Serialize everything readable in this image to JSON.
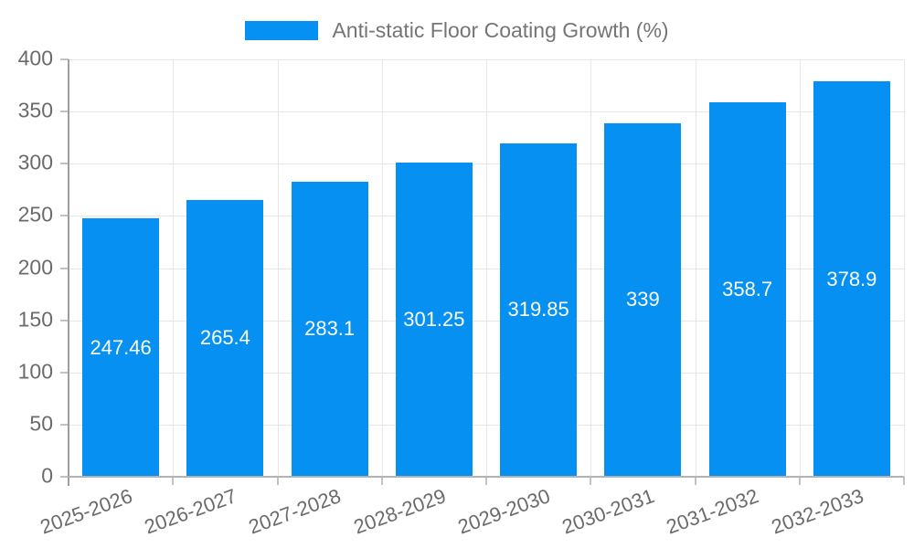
{
  "legend": {
    "label": "Anti-static Floor Coating Growth (%)"
  },
  "colors": {
    "bar": "#0590f2",
    "grid": "#e6e6e6",
    "axis": "#9e9e9e",
    "baseline": "#b3b3b3",
    "tick": "#c2c2c2",
    "axis_text": "#6b6b6b",
    "legend_text": "#757575",
    "value_text": "#ffffff"
  },
  "chart_data": {
    "type": "bar",
    "title": "Anti-static Floor Coating Growth (%)",
    "categories": [
      "2025-2026",
      "2026-2027",
      "2027-2028",
      "2028-2029",
      "2029-2030",
      "2030-2031",
      "2031-2032",
      "2032-2033"
    ],
    "values": [
      247.46,
      265.4,
      283.1,
      301.25,
      319.85,
      339,
      358.7,
      378.9
    ],
    "value_labels": [
      "247.46",
      "265.4",
      "283.1",
      "301.25",
      "319.85",
      "339",
      "358.7",
      "378.9"
    ],
    "xlabel": "",
    "ylabel": "",
    "ylim": [
      0,
      400
    ],
    "ytick_step": 50,
    "yticks": [
      0,
      50,
      100,
      150,
      200,
      250,
      300,
      350,
      400
    ],
    "grid": true,
    "legend_position": "top",
    "value_label_position": "center-of-bar",
    "x_label_rotation_deg": -20
  }
}
